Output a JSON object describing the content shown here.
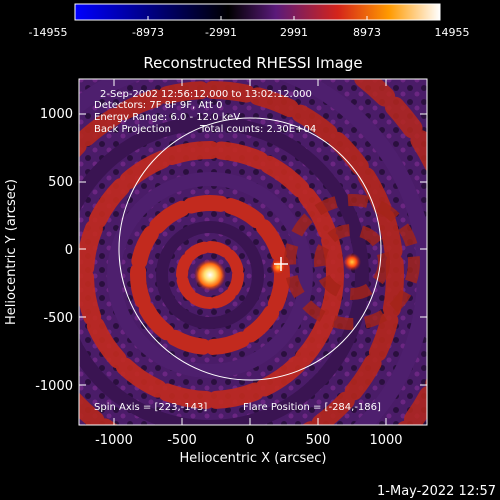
{
  "colorbar": {
    "ticks": [
      "-14955",
      "-8973",
      "-2991",
      "2991",
      "8973",
      "14955"
    ],
    "stops": [
      "#0000ff",
      "#000000",
      "#5a1a7a",
      "#d4241a",
      "#ff9a00",
      "#ffffff"
    ]
  },
  "title": "Reconstructed RHESSI Image",
  "annotations": {
    "time": "2-Sep-2002 12:56:12.000 to 13:02:12.000",
    "detectors": "Detectors: 7F 8F 9F, Att 0",
    "energy": "Energy Range: 6.0 - 12.0 keV",
    "method": "Back Projection",
    "counts": "Total counts: 2.30E+04",
    "spin_axis": "Spin Axis = [223,-143]",
    "flare_position": "Flare Position = [-284,-186]"
  },
  "axes": {
    "xlabel": "Heliocentric X (arcsec)",
    "ylabel": "Heliocentric Y (arcsec)",
    "xticks": [
      "-1000",
      "-500",
      "0",
      "500",
      "1000"
    ],
    "yticks": [
      "1000",
      "500",
      "0",
      "-500",
      "-1000"
    ]
  },
  "footer": {
    "timestamp": "1-May-2022 12:57"
  },
  "colors": {
    "background": "#000000",
    "limb": "#ffffff",
    "ring_red": "#b5271c",
    "ring_purple": "#4e1f6e"
  }
}
